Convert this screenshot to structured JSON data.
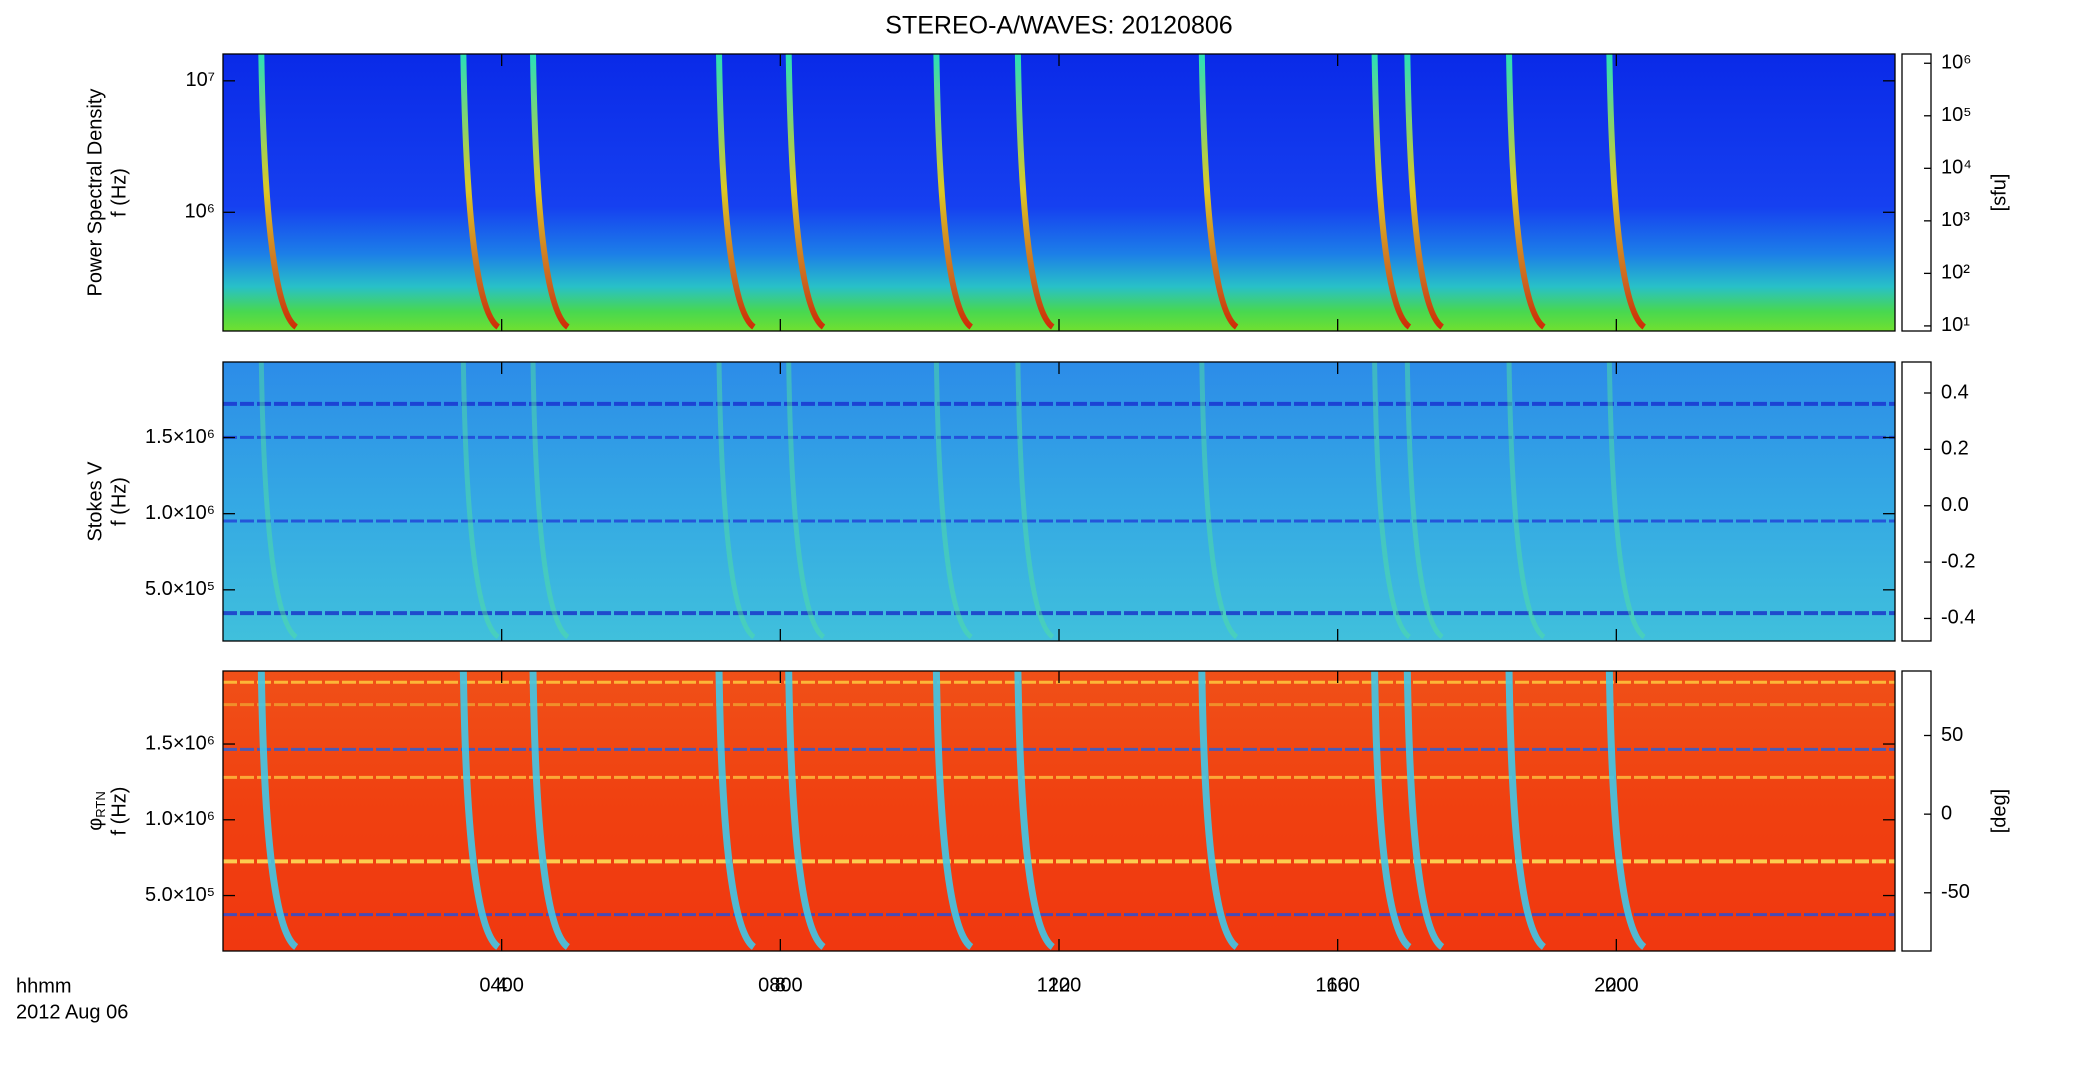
{
  "title": "STEREO-A/WAVES: 20120806",
  "x_label": "hhmm",
  "date_label": "2012 Aug 06",
  "chart_data": [
    {
      "type": "spectrogram",
      "ylabel": [
        "Power Spectral Density",
        "f (Hz)"
      ],
      "yscale": "log",
      "ylim": [
        125000,
        16000000
      ],
      "yticks": [
        {
          "value": 1000000,
          "label": "10⁶"
        },
        {
          "value": 10000000,
          "label": "10⁷"
        }
      ],
      "xlim": [
        0,
        24
      ],
      "xticks": [
        {
          "value": 4,
          "label": "0400"
        },
        {
          "value": 8,
          "label": "0800"
        },
        {
          "value": 12,
          "label": "1200"
        },
        {
          "value": 16,
          "label": "1600"
        },
        {
          "value": 20,
          "label": "2000"
        }
      ],
      "cscale": "log",
      "clim": [
        8,
        1500000
      ],
      "cticks": [
        {
          "value": 10,
          "label": "10¹"
        },
        {
          "value": 100,
          "label": "10²"
        },
        {
          "value": 1000,
          "label": "10³"
        },
        {
          "value": 10000,
          "label": "10⁴"
        },
        {
          "value": 100000,
          "label": "10⁵"
        },
        {
          "value": 1000000,
          "label": "10⁶"
        }
      ],
      "clabel": "[sfu]",
      "bursts": [
        0.55,
        3.45,
        4.45,
        7.12,
        8.12,
        10.24,
        11.41,
        14.05,
        16.53,
        17.0,
        18.46,
        19.9
      ]
    },
    {
      "type": "spectrogram",
      "ylabel": [
        "Stokes V",
        "f (Hz)"
      ],
      "yscale": "linear",
      "ylim": [
        164000,
        1996000
      ],
      "yticks": [
        {
          "value": 500000,
          "label": "5.0×10⁵"
        },
        {
          "value": 1000000,
          "label": "1.0×10⁶"
        },
        {
          "value": 1500000,
          "label": "1.5×10⁶"
        }
      ],
      "xlim": [
        0,
        24
      ],
      "xticks": [
        4,
        8,
        12,
        16,
        20
      ],
      "cscale": "linear",
      "clim": [
        -0.48,
        0.51
      ],
      "cticks": [
        -0.4,
        -0.2,
        {
          "value": 0,
          "label": "0.0"
        },
        0.2,
        0.4
      ]
    },
    {
      "type": "spectrogram",
      "ylabel": [
        "φ",
        "f (Hz)"
      ],
      "ylabel_sub": "RTN",
      "yscale": "linear",
      "ylim": [
        134000,
        1982000
      ],
      "yticks": [
        {
          "value": 500000,
          "label": "5.0×10⁵"
        },
        {
          "value": 1000000,
          "label": "1.0×10⁶"
        },
        {
          "value": 1500000,
          "label": "1.5×10⁶"
        }
      ],
      "xlim": [
        0,
        24
      ],
      "xticks": [
        4,
        8,
        12,
        16,
        20
      ],
      "cscale": "linear",
      "clim": [
        -87,
        91
      ],
      "cticks": [
        -50,
        0,
        50
      ],
      "clabel": "[deg]"
    }
  ]
}
